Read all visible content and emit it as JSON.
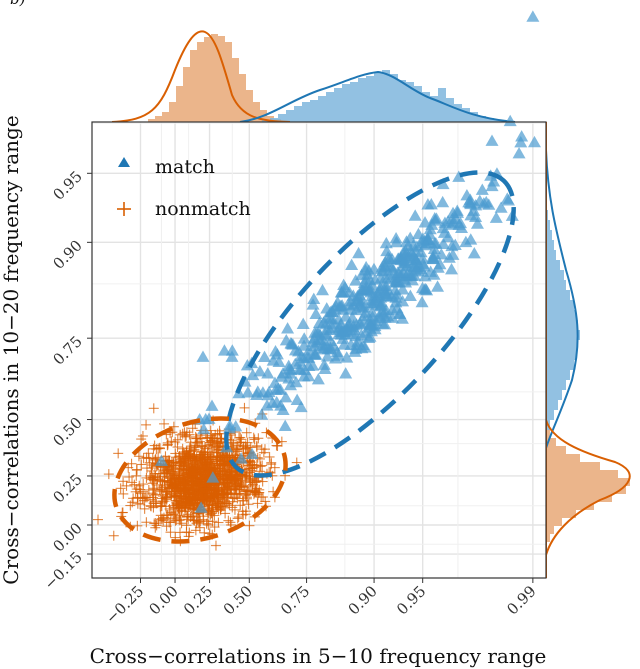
{
  "chart_data": {
    "type": "scatter",
    "panel_label": "b)",
    "xlabel": "Cross−correlations in 5−10 frequency range",
    "ylabel": "Cross−correlations in 10−20 frequency range",
    "x_ticks": [
      "−0.25",
      "0.00",
      "0.25",
      "0.50",
      "0.75",
      "0.90",
      "0.95",
      "0.99"
    ],
    "y_ticks": [
      "−0.15",
      "0.00",
      "0.25",
      "0.50",
      "0.75",
      "0.90",
      "0.95"
    ],
    "grid": true,
    "legend_position": "top-left",
    "series": [
      {
        "name": "match",
        "marker": "triangle",
        "color": "#1f77b4",
        "fill": "#4c9bd0",
        "cluster_center": [
          0.92,
          0.85
        ],
        "n_points": 460,
        "extreme_points": [
          [
            0.99,
            0.99
          ],
          [
            0.35,
            0.72
          ],
          [
            0.4,
            0.72
          ],
          [
            0.18,
            0.5
          ]
        ],
        "ellipse_95": {
          "center": [
            0.92,
            0.85
          ],
          "note": "dashed"
        }
      },
      {
        "name": "nonmatch",
        "marker": "plus",
        "color": "#d95f02",
        "cluster_center": [
          0.25,
          0.25
        ],
        "n_points": 1400,
        "ellipse_95": {
          "center": [
            0.25,
            0.25
          ],
          "note": "dashed"
        }
      }
    ],
    "marginals": {
      "top": {
        "series": [
          "nonmatch",
          "match"
        ],
        "type": "histogram+density"
      },
      "right": {
        "series": [
          "match",
          "nonmatch"
        ],
        "type": "histogram+density"
      }
    }
  }
}
